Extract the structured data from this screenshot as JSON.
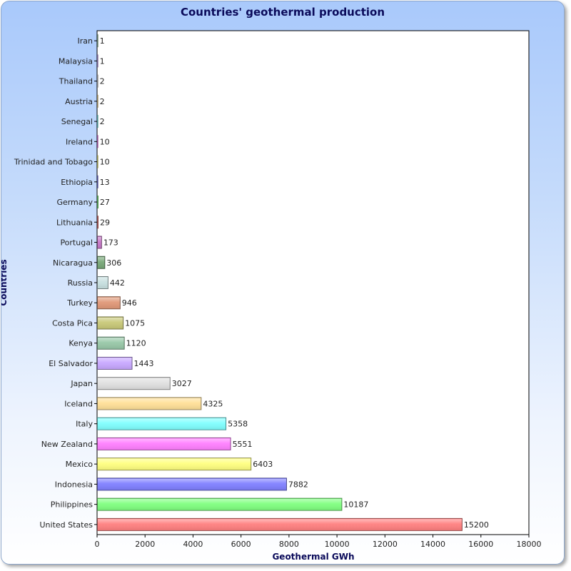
{
  "chart_data": {
    "type": "bar",
    "orientation": "horizontal",
    "title": "Countries' geothermal production",
    "xlabel": "Geothermal GWh",
    "ylabel": "Countries",
    "xlim": [
      0,
      18000
    ],
    "xticks": [
      0,
      2000,
      4000,
      6000,
      8000,
      10000,
      12000,
      14000,
      16000,
      18000
    ],
    "grid": false,
    "categories": [
      "Iran",
      "Malaysia",
      "Thailand",
      "Austria",
      "Senegal",
      "Ireland",
      "Trinidad and Tobago",
      "Ethiopia",
      "Germany",
      "Lithuania",
      "Portugal",
      "Nicaragua",
      "Russia",
      "Turkey",
      "Costa Pica",
      "Kenya",
      "El Salvador",
      "Japan",
      "Iceland",
      "Italy",
      "New Zealand",
      "Mexico",
      "Indonesia",
      "Philippines",
      "United States"
    ],
    "values": [
      1,
      1,
      2,
      2,
      2,
      10,
      10,
      13,
      27,
      29,
      173,
      306,
      442,
      946,
      1075,
      1120,
      1443,
      3027,
      4325,
      5358,
      5551,
      6403,
      7882,
      10187,
      15200
    ],
    "colors": [
      "#ff8080",
      "#80ff80",
      "#8080ff",
      "#ffff80",
      "#ff80ff",
      "#80ffff",
      "#ffe098",
      "#e0e0e0",
      "#c8a8ff",
      "#98c8a8",
      "#c8c878",
      "#e09878",
      "#c8e0e0",
      "#78a878",
      "#c878c8"
    ]
  }
}
